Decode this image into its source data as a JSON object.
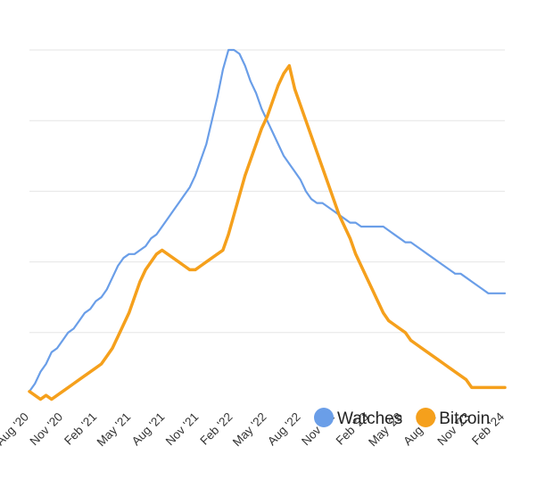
{
  "chart_data": {
    "type": "line",
    "title": "",
    "xlabel": "",
    "ylabel": "",
    "x_tick_labels": [
      "Aug '20",
      "Nov '20",
      "Feb '21",
      "May '21",
      "Aug '21",
      "Nov '21",
      "Feb '22",
      "May '22",
      "Aug '22",
      "Nov '22",
      "Feb '23",
      "May '23",
      "Aug '23",
      "Nov '23",
      "Feb '24"
    ],
    "y_axis": {
      "range": [
        0,
        100
      ],
      "tick_labels_visible": false,
      "gridlines": [
        18,
        36,
        54,
        72,
        90
      ]
    },
    "grid": "horizontal",
    "legend_position": "bottom-right",
    "x_dates": [
      "2020-08-01",
      "2020-08-15",
      "2020-09-01",
      "2020-09-15",
      "2020-10-01",
      "2020-10-15",
      "2020-11-01",
      "2020-11-15",
      "2020-12-01",
      "2020-12-15",
      "2021-01-01",
      "2021-01-15",
      "2021-02-01",
      "2021-02-15",
      "2021-03-01",
      "2021-03-15",
      "2021-04-01",
      "2021-04-15",
      "2021-05-01",
      "2021-05-15",
      "2021-06-01",
      "2021-06-15",
      "2021-07-01",
      "2021-07-15",
      "2021-08-01",
      "2021-08-15",
      "2021-09-01",
      "2021-09-15",
      "2021-10-01",
      "2021-10-15",
      "2021-11-01",
      "2021-11-15",
      "2021-12-01",
      "2021-12-15",
      "2022-01-01",
      "2022-01-15",
      "2022-02-01",
      "2022-02-15",
      "2022-03-01",
      "2022-03-15",
      "2022-04-01",
      "2022-04-15",
      "2022-05-01",
      "2022-05-15",
      "2022-06-01",
      "2022-06-15",
      "2022-07-01",
      "2022-07-15",
      "2022-08-01",
      "2022-08-15",
      "2022-09-01",
      "2022-09-15",
      "2022-10-01",
      "2022-10-15",
      "2022-11-01",
      "2022-11-15",
      "2022-12-01",
      "2022-12-15",
      "2023-01-01",
      "2023-01-15",
      "2023-02-01",
      "2023-02-15",
      "2023-03-01",
      "2023-03-15",
      "2023-04-01",
      "2023-04-15",
      "2023-05-01",
      "2023-05-15",
      "2023-06-01",
      "2023-06-15",
      "2023-07-01",
      "2023-07-15",
      "2023-08-01",
      "2023-08-15",
      "2023-09-01",
      "2023-09-15",
      "2023-10-01",
      "2023-10-15",
      "2023-11-01",
      "2023-11-15",
      "2023-12-01",
      "2023-12-15",
      "2024-01-01",
      "2024-01-15",
      "2024-02-01",
      "2024-02-15",
      "2024-03-01"
    ],
    "series": [
      {
        "name": "Watches",
        "color": "#6a9ee8",
        "values": [
          3,
          5,
          8,
          10,
          13,
          14,
          16,
          18,
          19,
          21,
          23,
          24,
          26,
          27,
          29,
          32,
          35,
          37,
          38,
          38,
          39,
          40,
          42,
          43,
          45,
          47,
          49,
          51,
          53,
          55,
          58,
          62,
          66,
          72,
          78,
          85,
          90,
          90,
          89,
          86,
          82,
          79,
          75,
          72,
          69,
          66,
          63,
          61,
          59,
          57,
          54,
          52,
          51,
          51,
          50,
          49,
          48,
          47,
          46,
          46,
          45,
          45,
          45,
          45,
          45,
          44,
          43,
          42,
          41,
          41,
          40,
          39,
          38,
          37,
          36,
          35,
          34,
          33,
          33,
          32,
          31,
          30,
          29,
          28,
          28,
          28,
          28
        ]
      },
      {
        "name": "Bitcoin",
        "color": "#f5a01c",
        "values": [
          3,
          2,
          1,
          2,
          1,
          2,
          3,
          4,
          5,
          6,
          7,
          8,
          9,
          10,
          12,
          14,
          17,
          20,
          23,
          27,
          31,
          34,
          36,
          38,
          39,
          38,
          37,
          36,
          35,
          34,
          34,
          35,
          36,
          37,
          38,
          39,
          43,
          48,
          53,
          58,
          62,
          66,
          70,
          73,
          77,
          81,
          84,
          86,
          80,
          76,
          72,
          68,
          64,
          60,
          56,
          52,
          48,
          45,
          42,
          38,
          35,
          32,
          29,
          26,
          23,
          21,
          20,
          19,
          18,
          16,
          15,
          14,
          13,
          12,
          11,
          10,
          9,
          8,
          7,
          6,
          4,
          4,
          4,
          4,
          4,
          4,
          4
        ]
      }
    ]
  }
}
